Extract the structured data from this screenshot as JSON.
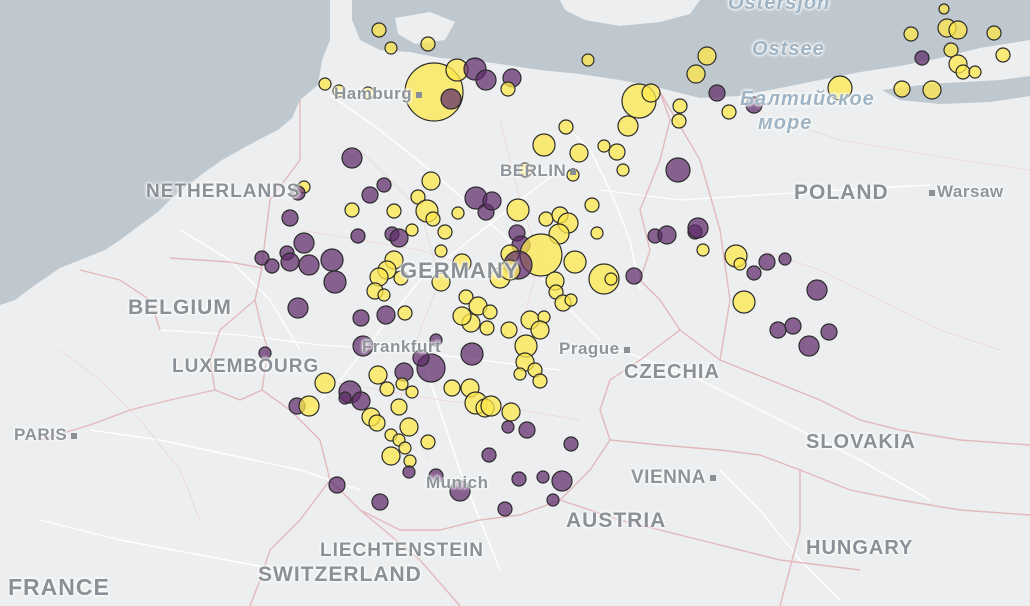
{
  "map": {
    "colors": {
      "land": "#eceeef",
      "water": "#bfc8cf",
      "border": "#e0b7bb",
      "road": "#ffffff",
      "label": "#8a9096",
      "marker_yellow": "#fde74c",
      "marker_purple": "#5e2a6a",
      "marker_outline": "#2b2b2b"
    },
    "labels": {
      "ostersjon": "Östersjön",
      "ostsee": "Ostsee",
      "baltic_ru_1": "Балтийское",
      "baltic_ru_2": "море",
      "hamburg": "Hamburg",
      "berlin": "BERLIN",
      "netherlands": "NETHERLANDS",
      "poland": "POLAND",
      "warsaw": "Warsaw",
      "germany": "GERMANY",
      "belgium": "BELGIUM",
      "luxembourg": "LUXEMBOURG",
      "frankfurt": "Frankfurt",
      "prague": "Prague",
      "czechia": "CZECHIA",
      "paris": "PARIS",
      "vienna": "VIENNA",
      "slovakia": "SLOVAKIA",
      "munich": "Munich",
      "austria": "AUSTRIA",
      "liechtenstein": "LIECHTENSTEIN",
      "switzerland": "SWITZERLAND",
      "hungary": "HUNGARY",
      "france": "FRANCE"
    }
  }
}
